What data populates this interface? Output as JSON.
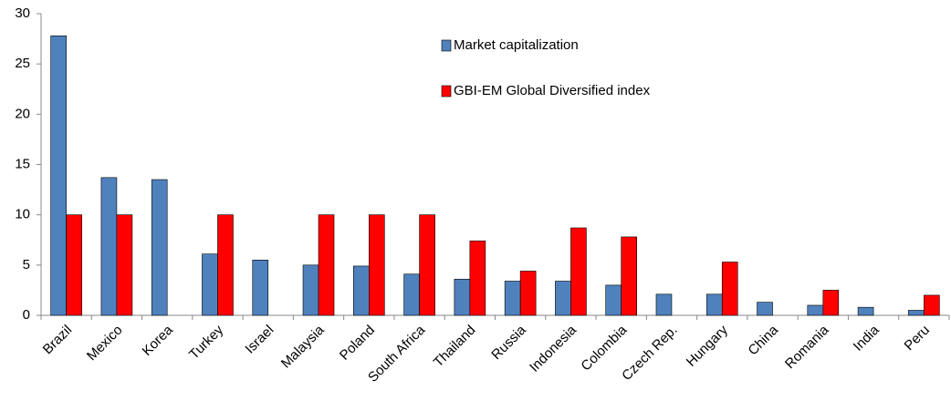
{
  "chart_data": {
    "type": "bar",
    "categories": [
      "Brazil",
      "Mexico",
      "Korea",
      "Turkey",
      "Israel",
      "Malaysia",
      "Poland",
      "South Africa",
      "Thailand",
      "Russia",
      "Indonesia",
      "Colombia",
      "Czech Rep.",
      "Hungary",
      "China",
      "Romania",
      "India",
      "Peru"
    ],
    "series": [
      {
        "name": "Market capitalization",
        "color": "#4f81bd",
        "values": [
          27.8,
          13.7,
          13.5,
          6.1,
          5.5,
          5.0,
          4.9,
          4.1,
          3.6,
          3.4,
          3.4,
          3.0,
          2.1,
          2.1,
          1.3,
          1.0,
          0.8,
          0.5
        ]
      },
      {
        "name": "GBI-EM Global Diversified index",
        "color": "#ff0000",
        "values": [
          10,
          10,
          null,
          10,
          null,
          10,
          10,
          10,
          7.4,
          4.4,
          8.7,
          7.8,
          null,
          5.3,
          null,
          2.5,
          null,
          2.0
        ]
      }
    ],
    "ylim": [
      0,
      30
    ],
    "yticks": [
      0,
      5,
      10,
      15,
      20,
      25,
      30
    ],
    "grid": false,
    "legend": "top-right"
  }
}
